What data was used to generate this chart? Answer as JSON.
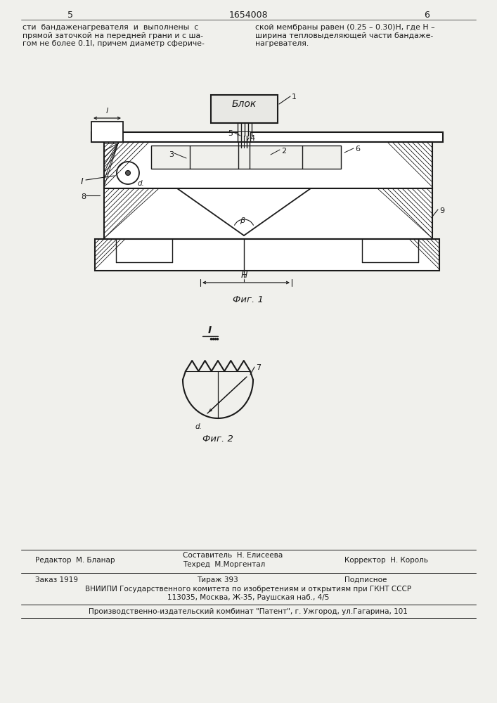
{
  "page_number_left": "5",
  "page_number_center": "1654008",
  "page_number_right": "6",
  "text_left": "сти  бандаженагревателя  и  выполнены  с\nпрямой заточкой на передней грани и с ша-\nгом не более 0.1l, причем диаметр сфериче-",
  "text_right": "ской мембраны равен (0.25 – 0.30)Н, где Н –\nширина тепловыделяющей части бандаже-\nнагревателя.",
  "fig1_caption": "Фиг. 1",
  "fig2_caption": "Фиг. 2",
  "footer_editor": "Редактор  М. Бланар",
  "footer_composer": "Составитель  Н. Елисеева",
  "footer_techred": "Техред  М.Моргентал",
  "footer_corrector": "Корректор  Н. Король",
  "footer_order": "Заказ 1919",
  "footer_circulation": "Тираж 393",
  "footer_subscription": "Подписное",
  "footer_vniipи": "ВНИИПИ Государственного комитета по изобретениям и открытиям при ГКНТ СССР",
  "footer_address": "113035, Москва, Ж-35, Раушская наб., 4/5",
  "footer_production": "Производственно-издательский комбинат \"Патент\", г. Ужгород, ул.Гагарина, 101",
  "bg_color": "#f0f0ec",
  "line_color": "#1a1a1a",
  "text_color": "#1a1a1a"
}
